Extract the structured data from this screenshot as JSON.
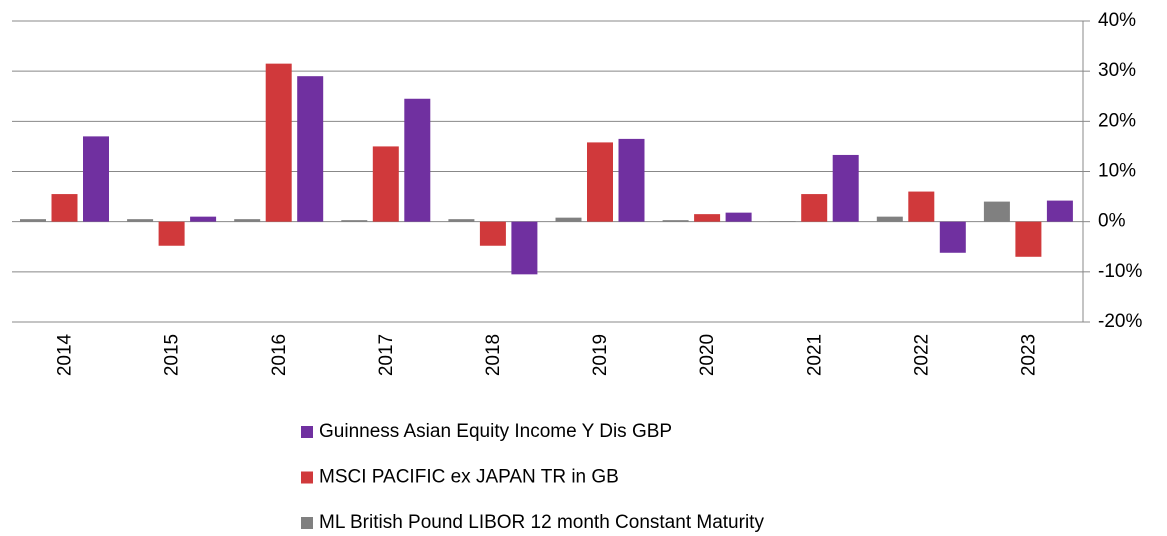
{
  "chart_data": {
    "type": "bar",
    "categories": [
      "2014",
      "2015",
      "2016",
      "2017",
      "2018",
      "2019",
      "2020",
      "2021",
      "2022",
      "2023"
    ],
    "series": [
      {
        "name": "Guinness Asian Equity Income Y Dis GBP",
        "color": "#7030a0",
        "values": [
          17,
          1,
          29,
          24.5,
          -10.5,
          16.5,
          1.8,
          13.3,
          -6.2,
          4.2
        ]
      },
      {
        "name": "MSCI PACIFIC ex JAPAN TR in GB",
        "color": "#d0393b",
        "values": [
          5.5,
          -4.8,
          31.5,
          15,
          -4.8,
          15.8,
          1.5,
          5.5,
          6,
          -7
        ]
      },
      {
        "name": "ML British Pound LIBOR 12 month Constant Maturity",
        "color": "#808080",
        "values": [
          0.5,
          0.5,
          0.5,
          0.3,
          0.5,
          0.8,
          0.3,
          0.1,
          1,
          4
        ]
      }
    ],
    "ylim": [
      -20,
      40
    ],
    "yticks": [
      {
        "value": -20,
        "label": "-20%"
      },
      {
        "value": -10,
        "label": "-10%"
      },
      {
        "value": 0,
        "label": "0%"
      },
      {
        "value": 10,
        "label": "10%"
      },
      {
        "value": 20,
        "label": "20%"
      },
      {
        "value": 30,
        "label": "30%"
      },
      {
        "value": 40,
        "label": "40%"
      }
    ],
    "grid": true
  }
}
